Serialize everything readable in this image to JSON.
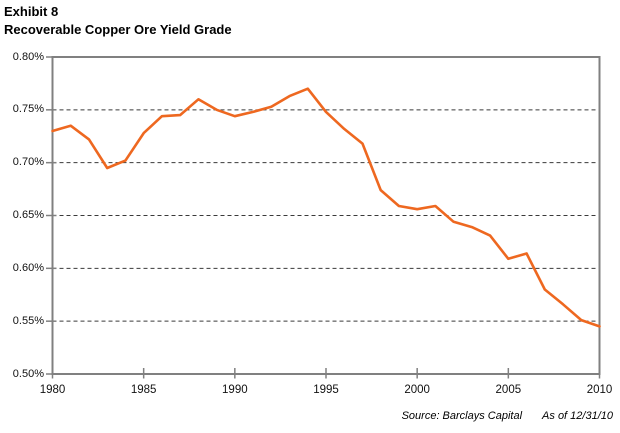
{
  "header": {
    "exhibit_label": "Exhibit 8",
    "title": "Recoverable Copper Ore Yield Grade"
  },
  "footer": {
    "source": "Source: Barclays Capital",
    "as_of": "As of 12/31/10"
  },
  "colors": {
    "line": "#EE6820",
    "axis": "#808080",
    "gridline": "#3a3a3a",
    "label_text": "#111111",
    "title_text": "#000000"
  },
  "chart_data": {
    "type": "line",
    "title": "Recoverable Copper Ore Yield Grade",
    "series_name": "Recoverable copper ore yield grade (%)",
    "x": [
      1980,
      1981,
      1982,
      1983,
      1984,
      1985,
      1986,
      1987,
      1988,
      1989,
      1990,
      1991,
      1992,
      1993,
      1994,
      1995,
      1996,
      1997,
      1998,
      1999,
      2000,
      2001,
      2002,
      2003,
      2004,
      2005,
      2006,
      2007,
      2008,
      2009,
      2010
    ],
    "values": [
      0.73,
      0.735,
      0.722,
      0.695,
      0.702,
      0.728,
      0.744,
      0.745,
      0.76,
      0.75,
      0.744,
      0.748,
      0.753,
      0.763,
      0.77,
      0.748,
      0.732,
      0.718,
      0.674,
      0.659,
      0.656,
      0.659,
      0.644,
      0.639,
      0.631,
      0.609,
      0.614,
      0.58,
      0.566,
      0.551,
      0.545
    ],
    "unit": "percent",
    "xlabel": "",
    "ylabel": "",
    "xlim": [
      1980,
      2010
    ],
    "ylim": [
      0.5,
      0.8
    ],
    "xticks": [
      1980,
      1985,
      1990,
      1995,
      2000,
      2005,
      2010
    ],
    "xtick_labels": [
      "1980",
      "1985",
      "1990",
      "1995",
      "2000",
      "2005",
      "2010"
    ],
    "yticks": [
      0.8,
      0.75,
      0.7,
      0.65,
      0.6,
      0.55,
      0.5
    ],
    "ytick_labels": [
      "0.80%",
      "0.75%",
      "0.70%",
      "0.65%",
      "0.60%",
      "0.55%",
      "0.50%"
    ],
    "grid": "horizontal dashed, inner lines only",
    "legend": "none"
  }
}
